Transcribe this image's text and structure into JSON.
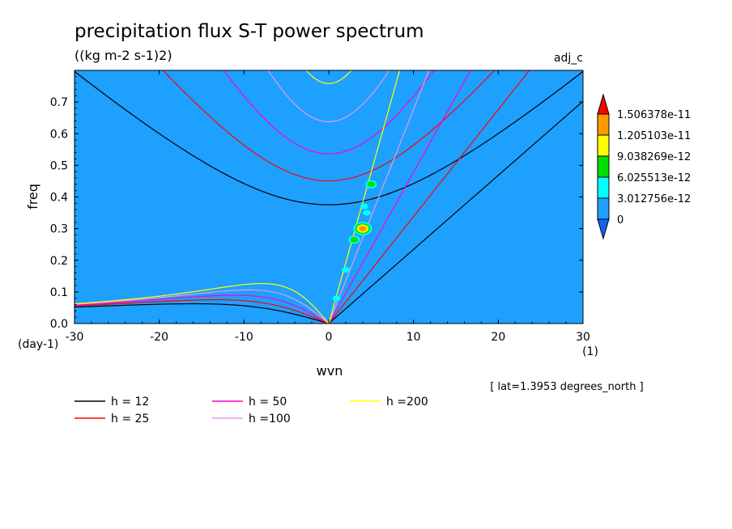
{
  "chart_data": {
    "type": "contour",
    "title": "precipitation flux S-T power spectrum",
    "subtitle": "((kg m-2 s-1)2)",
    "corner_label": "adj_c",
    "xlabel": "wvn",
    "ylabel": "freq",
    "x_unit": "(1)",
    "y_unit": "(day-1)",
    "xlim": [
      -30,
      30
    ],
    "ylim": [
      0,
      0.8
    ],
    "x_ticks": [
      "-30",
      "-20",
      "-10",
      "0",
      "10",
      "20",
      "30"
    ],
    "x_tick_values": [
      -30,
      -20,
      -10,
      0,
      10,
      20,
      30
    ],
    "y_ticks": [
      "0.0",
      "0.1",
      "0.2",
      "0.3",
      "0.4",
      "0.5",
      "0.6",
      "0.7"
    ],
    "y_tick_values": [
      0,
      0.1,
      0.2,
      0.3,
      0.4,
      0.5,
      0.6,
      0.7
    ],
    "annotation": "[ lat=1.3953 degrees_north ]",
    "background_color": "#1ea0ff",
    "colorbar": {
      "labels": [
        "1.506378e-11",
        "1.205103e-11",
        "9.038269e-12",
        "6.025513e-12",
        "3.012756e-12",
        "0"
      ],
      "colors": [
        "#ff0000",
        "#ff9900",
        "#ffff00",
        "#00dd00",
        "#00ffff",
        "#1ea0ff",
        "#1464f0"
      ]
    },
    "series": [
      {
        "name": "h = 12",
        "h": 12,
        "color": "#000000"
      },
      {
        "name": "h = 25",
        "h": 25,
        "color": "#ff0000"
      },
      {
        "name": "h = 50",
        "h": 50,
        "color": "#ff00cc"
      },
      {
        "name": "h =100",
        "h": 100,
        "color": "#e899e8"
      },
      {
        "name": "h =200",
        "h": 200,
        "color": "#ffff00"
      }
    ],
    "hotspots": [
      {
        "x": 0.9,
        "y": 0.08,
        "level": 4
      },
      {
        "x": 2.0,
        "y": 0.17,
        "level": 4
      },
      {
        "x": 3.0,
        "y": 0.265,
        "level": 3
      },
      {
        "x": 4.0,
        "y": 0.3,
        "level": 1
      },
      {
        "x": 4.5,
        "y": 0.35,
        "level": 4
      },
      {
        "x": 4.2,
        "y": 0.37,
        "level": 4
      },
      {
        "x": 5.0,
        "y": 0.44,
        "level": 3
      }
    ]
  }
}
